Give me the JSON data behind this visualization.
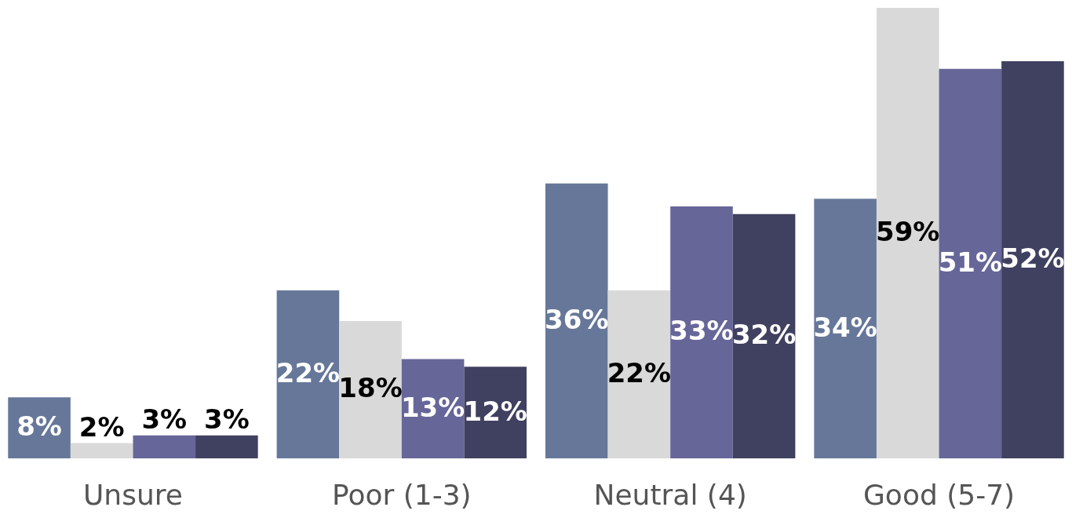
{
  "chart_data": {
    "type": "bar",
    "categories": [
      "Unsure",
      "Poor (1-3)",
      "Neutral (4)",
      "Good (5-7)"
    ],
    "series": [
      {
        "color": "#667799",
        "values": [
          8,
          22,
          36,
          34
        ],
        "value_labels": [
          "8%",
          "22%",
          "36%",
          "34%"
        ]
      },
      {
        "color": "#d9d9d9",
        "values": [
          2,
          18,
          22,
          59
        ],
        "value_labels": [
          "2%",
          "18%",
          "22%",
          "59%"
        ]
      },
      {
        "color": "#666699",
        "values": [
          3,
          13,
          33,
          51
        ],
        "value_labels": [
          "3%",
          "13%",
          "33%",
          "51%"
        ]
      },
      {
        "color": "#404060",
        "values": [
          3,
          12,
          32,
          52
        ],
        "value_labels": [
          "3%",
          "12%",
          "32%",
          "52%"
        ]
      }
    ]
  }
}
